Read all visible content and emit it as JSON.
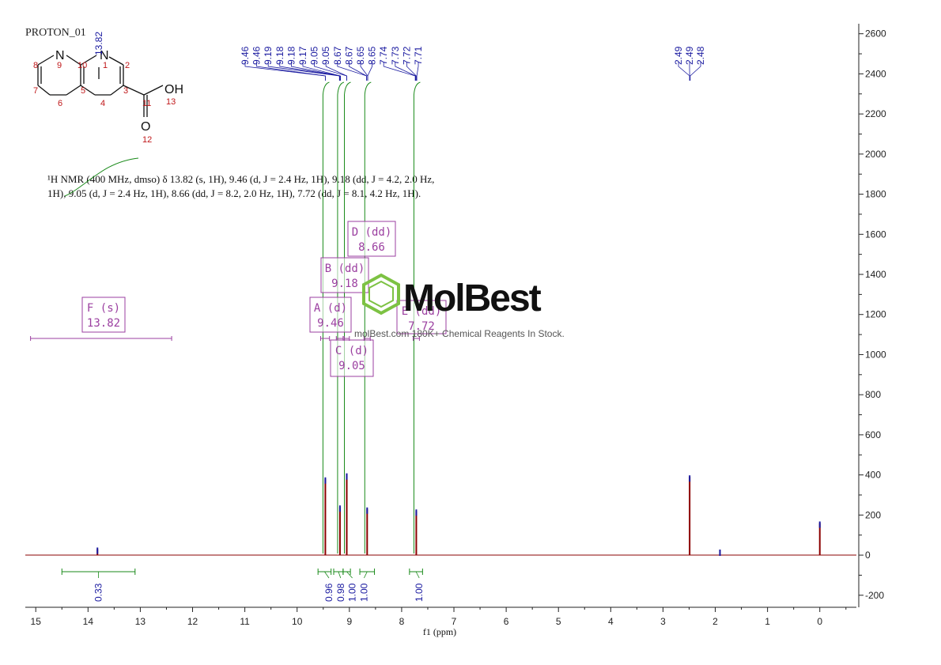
{
  "title": "PROTON_01",
  "structure": {
    "atoms": [
      {
        "symbol": "N",
        "number": "9"
      },
      {
        "symbol": "N",
        "number": "1"
      },
      {
        "symbol": "",
        "number": "2"
      },
      {
        "symbol": "",
        "number": "3"
      },
      {
        "symbol": "",
        "number": "4"
      },
      {
        "symbol": "",
        "number": "5"
      },
      {
        "symbol": "",
        "number": "6"
      },
      {
        "symbol": "",
        "number": "7"
      },
      {
        "symbol": "",
        "number": "8"
      },
      {
        "symbol": "",
        "number": "10"
      },
      {
        "symbol": "",
        "number": "11"
      },
      {
        "symbol": "O",
        "number": "12"
      },
      {
        "symbol": "OH",
        "number": "13"
      }
    ],
    "shift_label": "13.82"
  },
  "nmr_text": {
    "line1": "¹H NMR (400 MHz, dmso) δ 13.82 (s, 1H), 9.46 (d, J = 2.4 Hz, 1H), 9.18 (dd, J = 4.2, 2.0 Hz,",
    "line2": "1H), 9.05 (d, J = 2.4 Hz, 1H), 8.66 (dd, J = 8.2, 2.0 Hz, 1H), 7.72 (dd, J = 8.1, 4.2 Hz, 1H)."
  },
  "peak_labels_group1": [
    "9.46",
    "9.46",
    "9.19",
    "9.18",
    "9.18",
    "9.17",
    "9.05",
    "9.05",
    "8.67",
    "8.67",
    "8.65",
    "8.65",
    "7.74",
    "7.73",
    "7.72",
    "7.71"
  ],
  "peak_labels_group2": [
    "2.49",
    "2.49",
    "2.48"
  ],
  "multiplets": [
    {
      "letter": "F",
      "type": "(s)",
      "shift": "13.82",
      "center": 13.82,
      "range": [
        15.1,
        12.4
      ]
    },
    {
      "letter": "A",
      "type": "(d)",
      "shift": "9.46",
      "center": 9.46,
      "range": [
        9.55,
        9.38
      ]
    },
    {
      "letter": "B",
      "type": "(dd)",
      "shift": "9.18",
      "center": 9.18,
      "range": [
        9.25,
        9.12
      ]
    },
    {
      "letter": "C",
      "type": "(d)",
      "shift": "9.05",
      "center": 9.05,
      "range": [
        9.1,
        9.0
      ]
    },
    {
      "letter": "D",
      "type": "(dd)",
      "shift": "8.66",
      "center": 8.66,
      "range": [
        8.72,
        8.6
      ]
    },
    {
      "letter": "E",
      "type": "(dd)",
      "shift": "7.72",
      "center": 7.72,
      "range": [
        7.78,
        7.66
      ]
    }
  ],
  "integrals": [
    {
      "value": "0.33",
      "from": 14.5,
      "to": 13.1
    },
    {
      "value": "0.96",
      "from": 9.6,
      "to": 9.35
    },
    {
      "value": "0.98",
      "from": 9.3,
      "to": 9.12
    },
    {
      "value": "1.00",
      "from": 9.12,
      "to": 8.98
    },
    {
      "value": "1.00",
      "from": 8.8,
      "to": 8.52
    },
    {
      "value": "1.00",
      "from": 7.85,
      "to": 7.6
    }
  ],
  "watermark": {
    "brand": "MolBest",
    "tagline": "molBest.com 180K+ Chemical Reagents In Stock."
  },
  "chart_data": {
    "type": "line",
    "title": "PROTON_01",
    "xlabel": "f1 (ppm)",
    "ylabel": "",
    "xlim": [
      15.2,
      -0.7
    ],
    "ylim": [
      -260,
      2650
    ],
    "x_ticks": [
      15,
      14,
      13,
      12,
      11,
      10,
      9,
      8,
      7,
      6,
      5,
      4,
      3,
      2,
      1,
      0
    ],
    "y_ticks": [
      -200,
      0,
      200,
      400,
      600,
      800,
      1000,
      1200,
      1400,
      1600,
      1800,
      2000,
      2200,
      2400,
      2600
    ],
    "series": [
      {
        "peaks": [
          {
            "x": 13.82,
            "y": 30
          },
          {
            "x": 9.46,
            "y": 380
          },
          {
            "x": 9.18,
            "y": 240
          },
          {
            "x": 9.05,
            "y": 400
          },
          {
            "x": 8.66,
            "y": 230
          },
          {
            "x": 7.72,
            "y": 220
          },
          {
            "x": 2.49,
            "y": 390
          },
          {
            "x": 1.91,
            "y": 20
          },
          {
            "x": 0.0,
            "y": 160
          }
        ]
      }
    ],
    "colors": {
      "spectrum": "#8b0000",
      "peak_labels": "#1a1aa0",
      "integral": "#1a8a1a",
      "multiplet": "#9b3fa0",
      "watermark_green": "#7dc243"
    },
    "grid": false,
    "legend": "none"
  }
}
